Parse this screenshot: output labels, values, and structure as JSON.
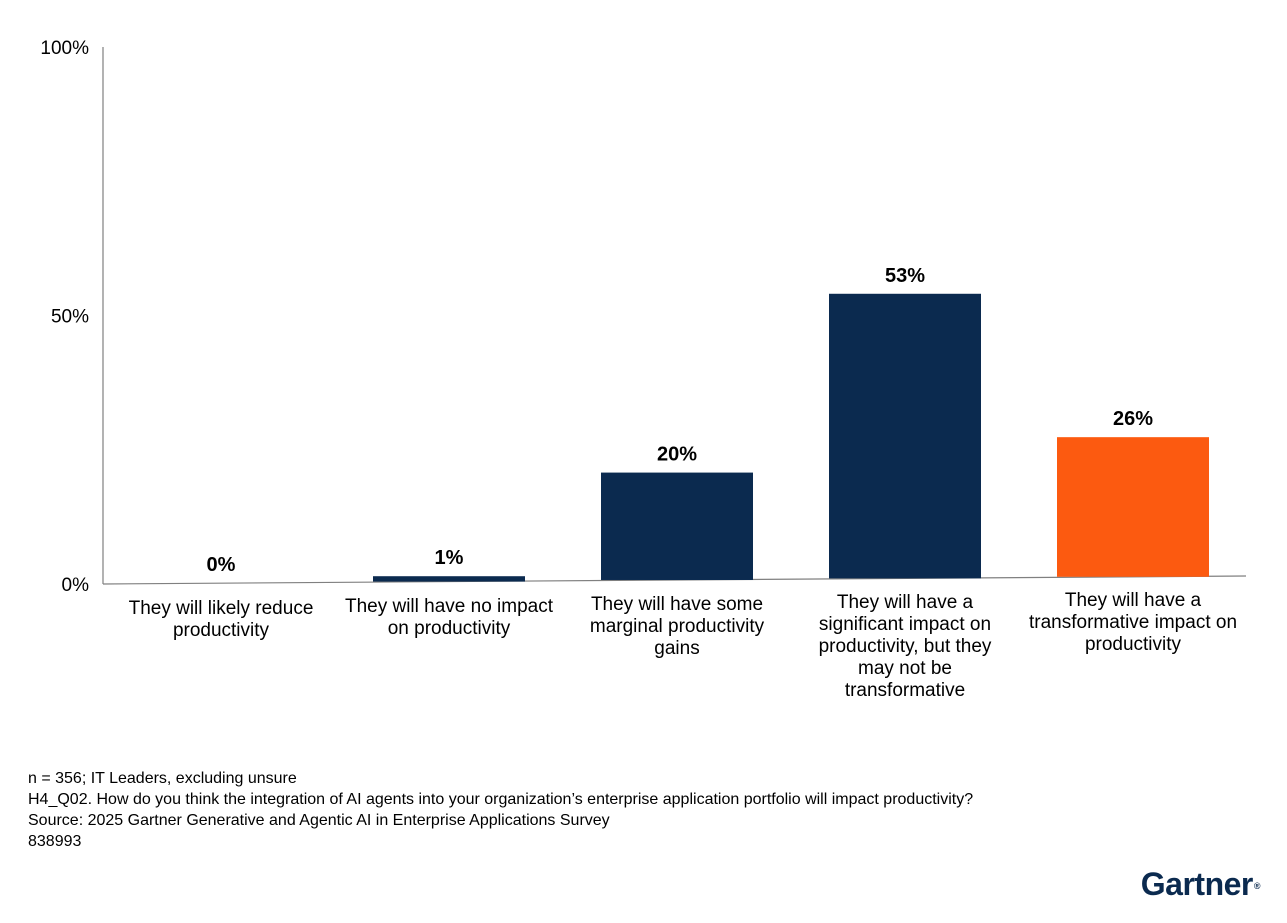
{
  "chart_data": {
    "type": "bar",
    "title": "",
    "xlabel": "",
    "ylabel": "",
    "ylim": [
      0,
      100
    ],
    "yticks": [
      {
        "value": 0,
        "label": "0%"
      },
      {
        "value": 50,
        "label": "50%"
      },
      {
        "value": 100,
        "label": "100%"
      }
    ],
    "grid": false,
    "categories": [
      [
        "They will likely reduce",
        "productivity"
      ],
      [
        "They will have no impact",
        "on productivity"
      ],
      [
        "They will have some",
        "marginal productivity",
        "gains"
      ],
      [
        "They will have a",
        "significant impact on",
        "productivity, but they",
        "may not be",
        "transformative"
      ],
      [
        "They will have a",
        "transformative impact on",
        "productivity"
      ]
    ],
    "values": [
      0,
      1,
      20,
      53,
      26
    ],
    "value_labels": [
      "0%",
      "1%",
      "20%",
      "53%",
      "26%"
    ],
    "colors": [
      "#0b2a4f",
      "#0b2a4f",
      "#0b2a4f",
      "#0b2a4f",
      "#fc5a10"
    ]
  },
  "footnotes": {
    "sample": "n = 356; IT Leaders, excluding unsure",
    "question": "H4_Q02. How do you think the integration of AI agents into your organization’s enterprise application portfolio will impact productivity?",
    "source": "Source: 2025 Gartner Generative and Agentic AI in Enterprise Applications Survey",
    "id": "838993"
  },
  "logo": {
    "text": "Gartner",
    "mark": "®"
  }
}
